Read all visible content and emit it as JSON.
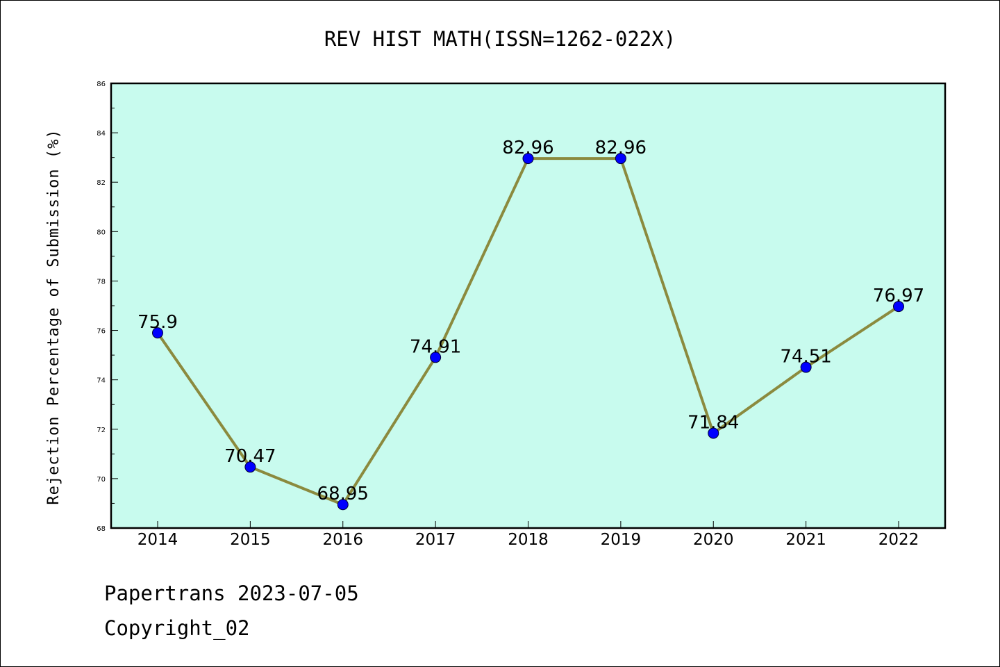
{
  "chart_data": {
    "type": "line",
    "title": "REV HIST MATH(ISSN=1262-022X)",
    "xlabel": "",
    "ylabel": "Rejection Percentage of Submission (%)",
    "categories": [
      "2014",
      "2015",
      "2016",
      "2017",
      "2018",
      "2019",
      "2020",
      "2021",
      "2022"
    ],
    "series": [
      {
        "values": [
          75.9,
          70.47,
          68.95,
          74.91,
          82.96,
          82.96,
          71.84,
          74.51,
          76.97
        ],
        "labels": [
          "75.9",
          "70.47",
          "68.95",
          "74.91",
          "82.96",
          "82.96",
          "71.84",
          "74.51",
          "76.97"
        ]
      }
    ],
    "ylim": [
      68,
      86
    ],
    "yticks": [
      "68",
      "70",
      "72",
      "74",
      "76",
      "78",
      "80",
      "82",
      "84",
      "86"
    ],
    "grid": false,
    "colors": {
      "plot_background": "#c8fbee",
      "line": "#8b8a3e",
      "marker": "#0000ff"
    }
  },
  "footer": {
    "line1": "Papertrans 2023-07-05",
    "line2": "Copyright_02"
  }
}
